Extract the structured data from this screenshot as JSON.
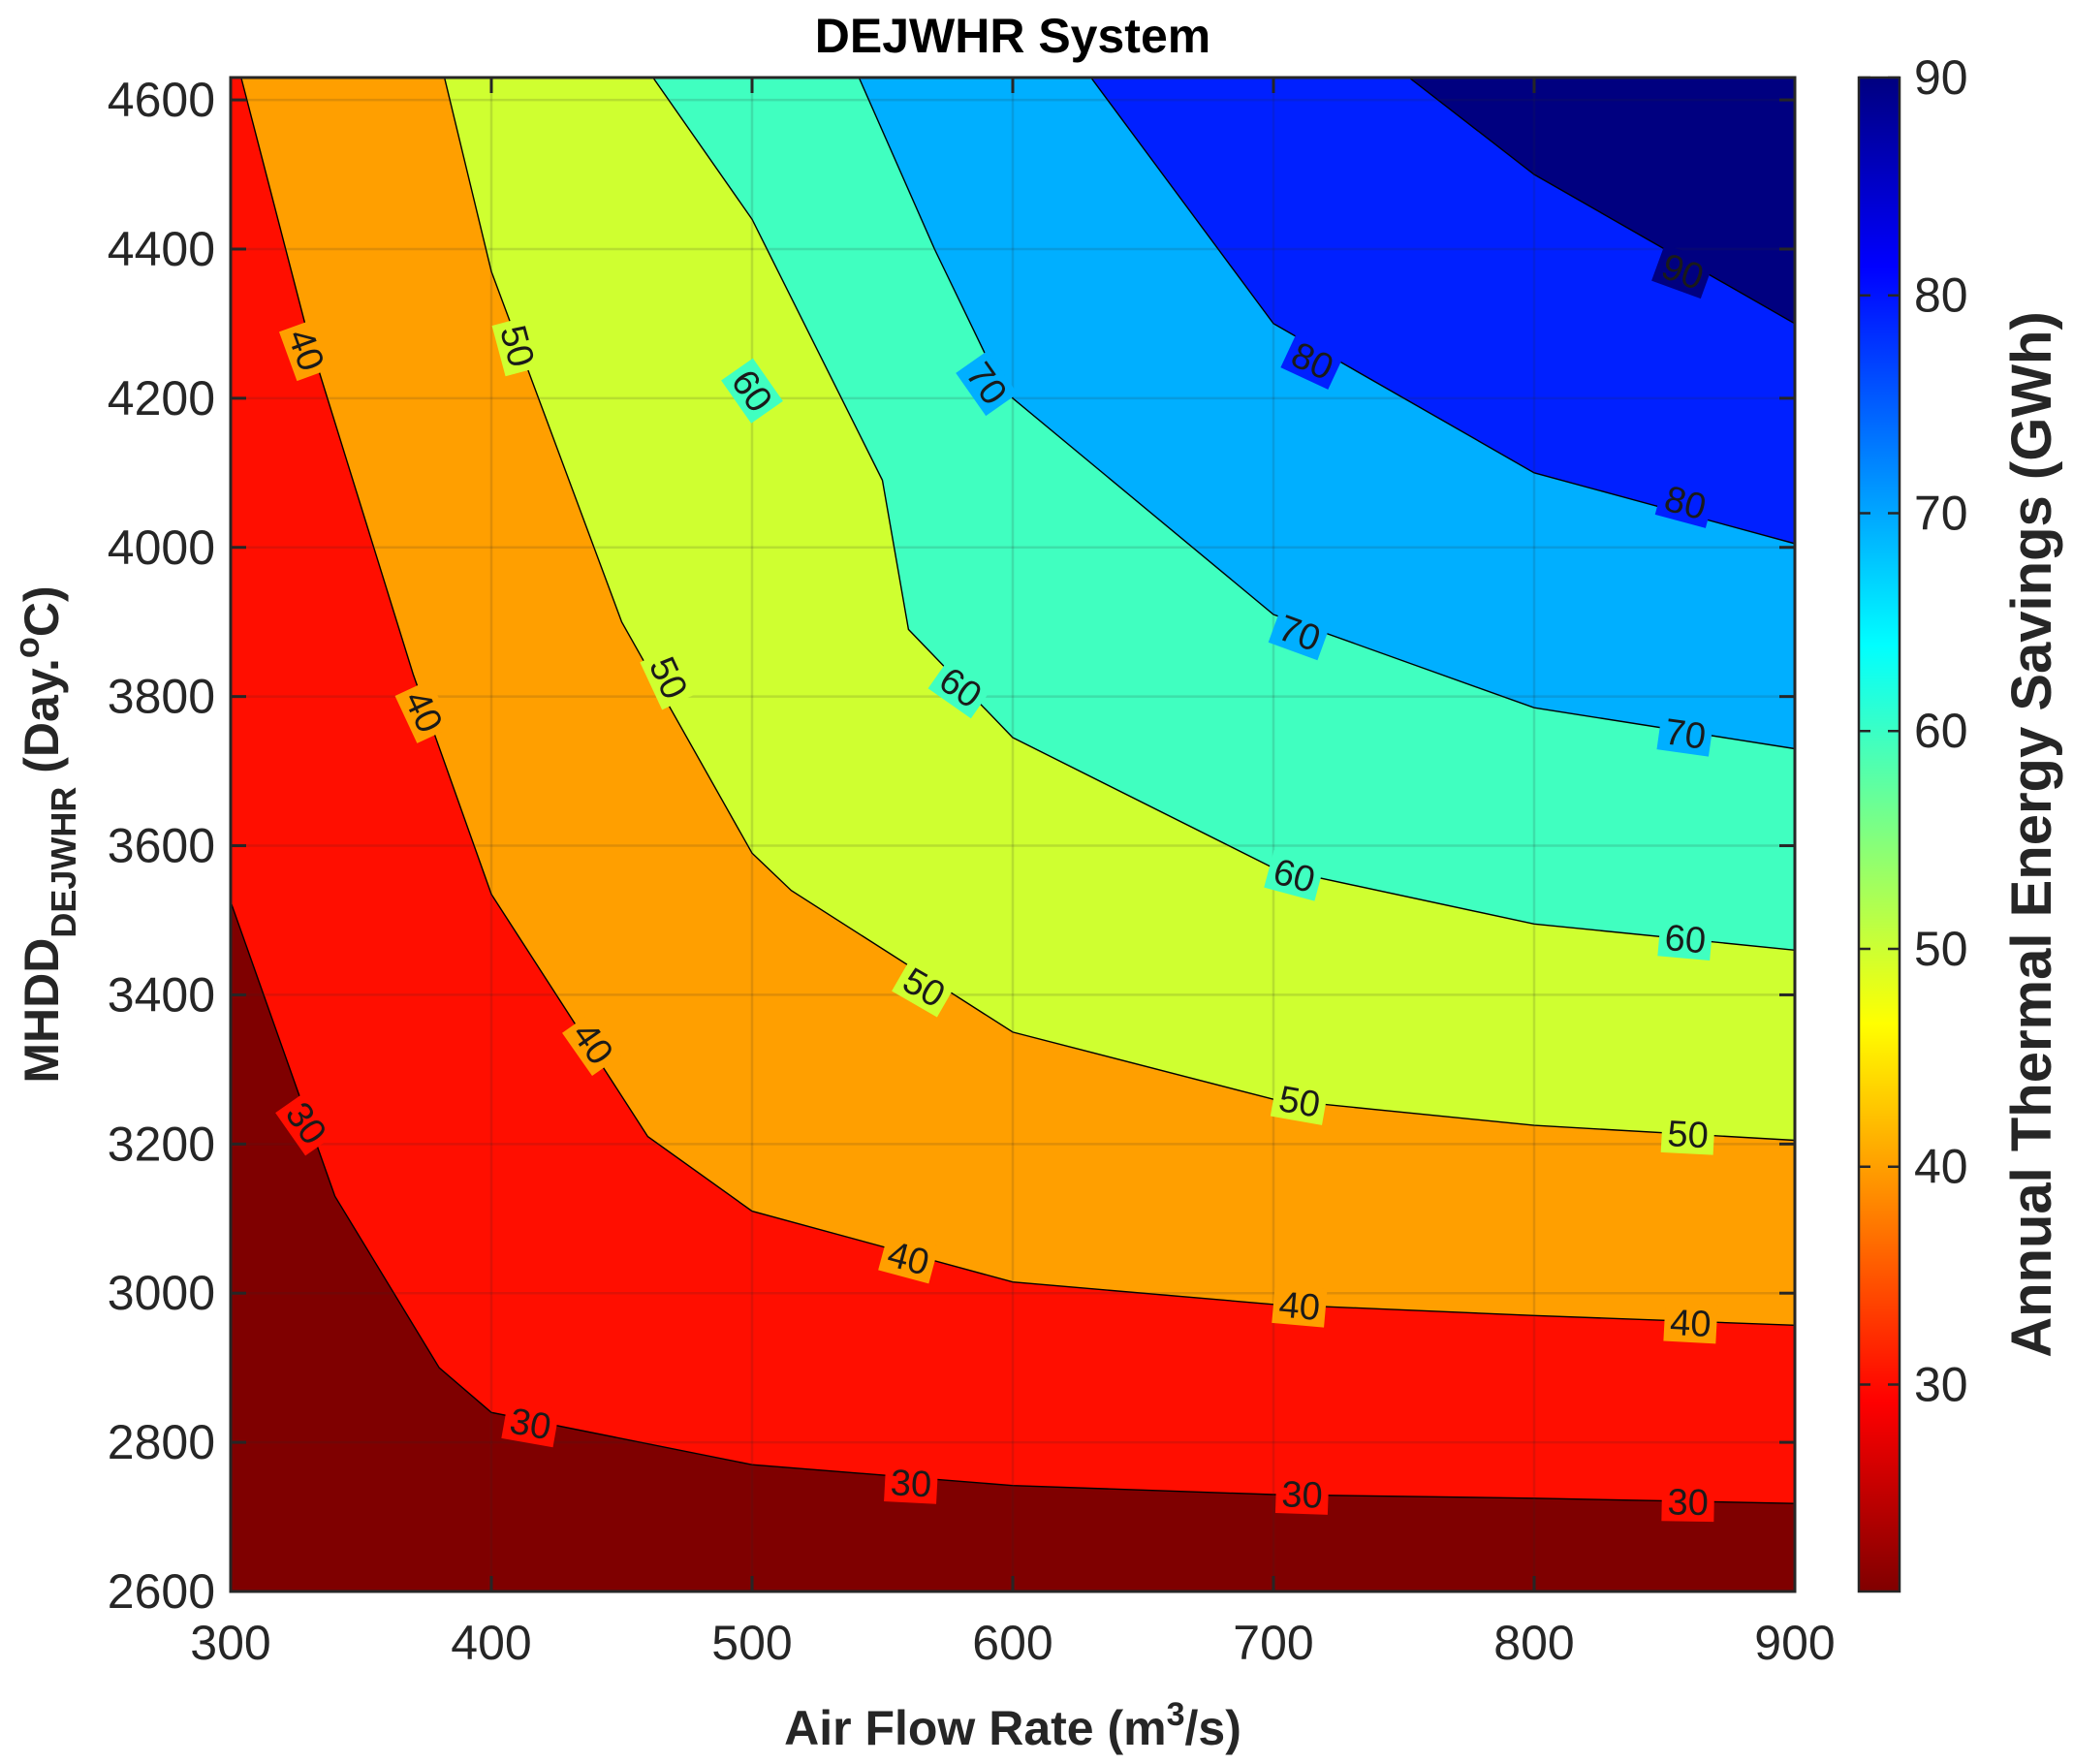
{
  "chart_data": {
    "type": "contourf",
    "title": "DEJWHR System",
    "xlabel": "Air Flow Rate (m³/s)",
    "xlabel_parts": {
      "main": "Air Flow Rate (m",
      "sup": "3",
      "end": "/s)"
    },
    "ylabel": "MHDD DEJWHR (Day.°C)",
    "ylabel_parts": {
      "main": "MHDD",
      "sub": "DEJWHR",
      "rest1": " (Day.",
      "sup": "o",
      "rest2": "C)"
    },
    "colorbar_label": "Annual Thermal Energy Savings (GWh)",
    "xlim": [
      300,
      900
    ],
    "ylim": [
      2600,
      4630
    ],
    "xticks": [
      300,
      400,
      500,
      600,
      700,
      800,
      900
    ],
    "yticks": [
      2600,
      2800,
      3000,
      3200,
      3400,
      3600,
      3800,
      4000,
      4200,
      4400,
      4600
    ],
    "colorbar_range": [
      20.5,
      90
    ],
    "colorbar_ticks": [
      30,
      40,
      50,
      60,
      70,
      80,
      90
    ],
    "colormap": "jet",
    "grid": true,
    "levels": [
      {
        "value": 30,
        "color": "#FF0E00",
        "points": [
          [
            300,
            3525
          ],
          [
            340,
            3130
          ],
          [
            380,
            2900
          ],
          [
            400,
            2840
          ],
          [
            500,
            2770
          ],
          [
            600,
            2742
          ],
          [
            700,
            2730
          ],
          [
            800,
            2725
          ],
          [
            900,
            2718
          ]
        ]
      },
      {
        "value": 40,
        "color": "#FF9F00",
        "points": [
          [
            304,
            4630
          ],
          [
            330,
            4280
          ],
          [
            370,
            3830
          ],
          [
            400,
            3535
          ],
          [
            460,
            3210
          ],
          [
            500,
            3110
          ],
          [
            600,
            3015
          ],
          [
            700,
            2985
          ],
          [
            800,
            2970
          ],
          [
            900,
            2957
          ]
        ]
      },
      {
        "value": 50,
        "color": "#CFFF30",
        "points": [
          [
            382,
            4630
          ],
          [
            400,
            4370
          ],
          [
            450,
            3900
          ],
          [
            500,
            3590
          ],
          [
            515,
            3540
          ],
          [
            600,
            3350
          ],
          [
            700,
            3260
          ],
          [
            800,
            3225
          ],
          [
            900,
            3205
          ]
        ]
      },
      {
        "value": 60,
        "color": "#40FFC0",
        "points": [
          [
            462,
            4630
          ],
          [
            500,
            4440
          ],
          [
            550,
            4090
          ],
          [
            560,
            3890
          ],
          [
            600,
            3745
          ],
          [
            700,
            3570
          ],
          [
            800,
            3495
          ],
          [
            900,
            3460
          ]
        ]
      },
      {
        "value": 70,
        "color": "#00AFFF",
        "points": [
          [
            541,
            4630
          ],
          [
            570,
            4400
          ],
          [
            590,
            4255
          ],
          [
            600,
            4200
          ],
          [
            700,
            3910
          ],
          [
            800,
            3785
          ],
          [
            900,
            3730
          ]
        ]
      },
      {
        "value": 80,
        "color": "#0020FF",
        "points": [
          [
            630,
            4630
          ],
          [
            700,
            4300
          ],
          [
            800,
            4100
          ],
          [
            900,
            4005
          ]
        ]
      },
      {
        "value": 90,
        "color": "#000080",
        "points": [
          [
            752,
            4630
          ],
          [
            800,
            4500
          ],
          [
            900,
            4300
          ]
        ]
      }
    ],
    "contour_labels": [
      {
        "text": "40",
        "x": 329,
        "y": 4265,
        "angle": 70
      },
      {
        "text": "40",
        "x": 374,
        "y": 3780,
        "angle": 65
      },
      {
        "text": "40",
        "x": 439,
        "y": 3335,
        "angle": 55
      },
      {
        "text": "40",
        "x": 560,
        "y": 3047,
        "angle": 15
      },
      {
        "text": "40",
        "x": 710,
        "y": 2983,
        "angle": 5
      },
      {
        "text": "40",
        "x": 860,
        "y": 2960,
        "angle": 3
      },
      {
        "text": "30",
        "x": 329,
        "y": 3228,
        "angle": 55
      },
      {
        "text": "30",
        "x": 415,
        "y": 2825,
        "angle": 10
      },
      {
        "text": "30",
        "x": 561,
        "y": 2745,
        "angle": 3
      },
      {
        "text": "30",
        "x": 711,
        "y": 2730,
        "angle": 2
      },
      {
        "text": "30",
        "x": 859,
        "y": 2720,
        "angle": 1
      },
      {
        "text": "50",
        "x": 410,
        "y": 4270,
        "angle": 75
      },
      {
        "text": "50",
        "x": 468,
        "y": 3825,
        "angle": 65
      },
      {
        "text": "50",
        "x": 566,
        "y": 3410,
        "angle": 30
      },
      {
        "text": "50",
        "x": 710,
        "y": 3257,
        "angle": 10
      },
      {
        "text": "50",
        "x": 859,
        "y": 3213,
        "angle": 3
      },
      {
        "text": "60",
        "x": 500,
        "y": 4210,
        "angle": 55
      },
      {
        "text": "60",
        "x": 580,
        "y": 3812,
        "angle": 35
      },
      {
        "text": "60",
        "x": 708,
        "y": 3560,
        "angle": 15
      },
      {
        "text": "60",
        "x": 858,
        "y": 3475,
        "angle": 5
      },
      {
        "text": "70",
        "x": 590,
        "y": 4220,
        "angle": 55
      },
      {
        "text": "70",
        "x": 710,
        "y": 3885,
        "angle": 20
      },
      {
        "text": "70",
        "x": 858,
        "y": 3750,
        "angle": 8
      },
      {
        "text": "80",
        "x": 715,
        "y": 4250,
        "angle": 25
      },
      {
        "text": "80",
        "x": 858,
        "y": 4060,
        "angle": 15
      },
      {
        "text": "90",
        "x": 857,
        "y": 4370,
        "angle": 20
      }
    ]
  },
  "style": {
    "background": "#7F0000",
    "jet_stops": [
      "#800000",
      "#FF0000",
      "#FF8000",
      "#FFFF00",
      "#80FF80",
      "#00FFFF",
      "#0080FF",
      "#0000FF",
      "#000080"
    ]
  }
}
